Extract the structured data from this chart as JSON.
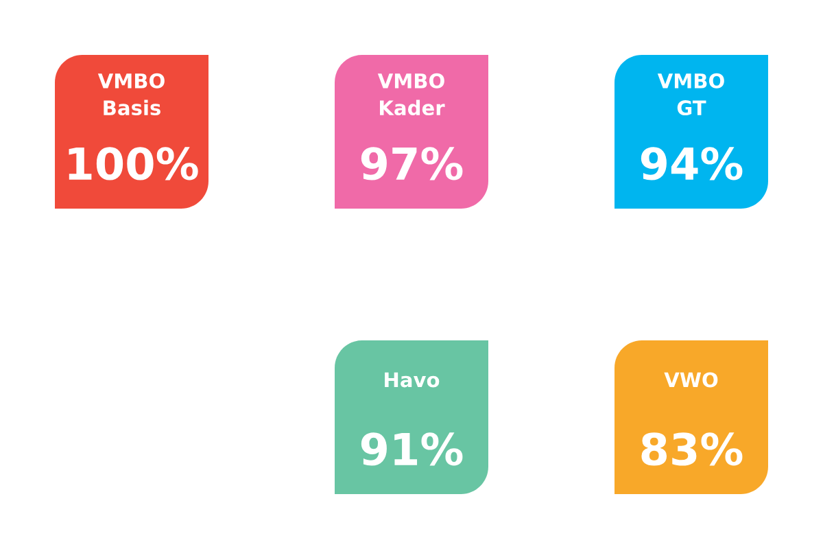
{
  "chart_data": {
    "type": "other",
    "categories": [
      "VMBO\nBasis",
      "VMBO\nKader",
      "VMBO\nGT",
      "Havo",
      "VWO"
    ],
    "values": [
      100,
      97,
      94,
      91,
      83
    ],
    "value_labels": [
      "100%",
      "97%",
      "94%",
      "91%",
      "83%"
    ],
    "colors": [
      "#f04a3a",
      "#f06aa8",
      "#00b5ef",
      "#68c5a3",
      "#f8a829"
    ]
  }
}
